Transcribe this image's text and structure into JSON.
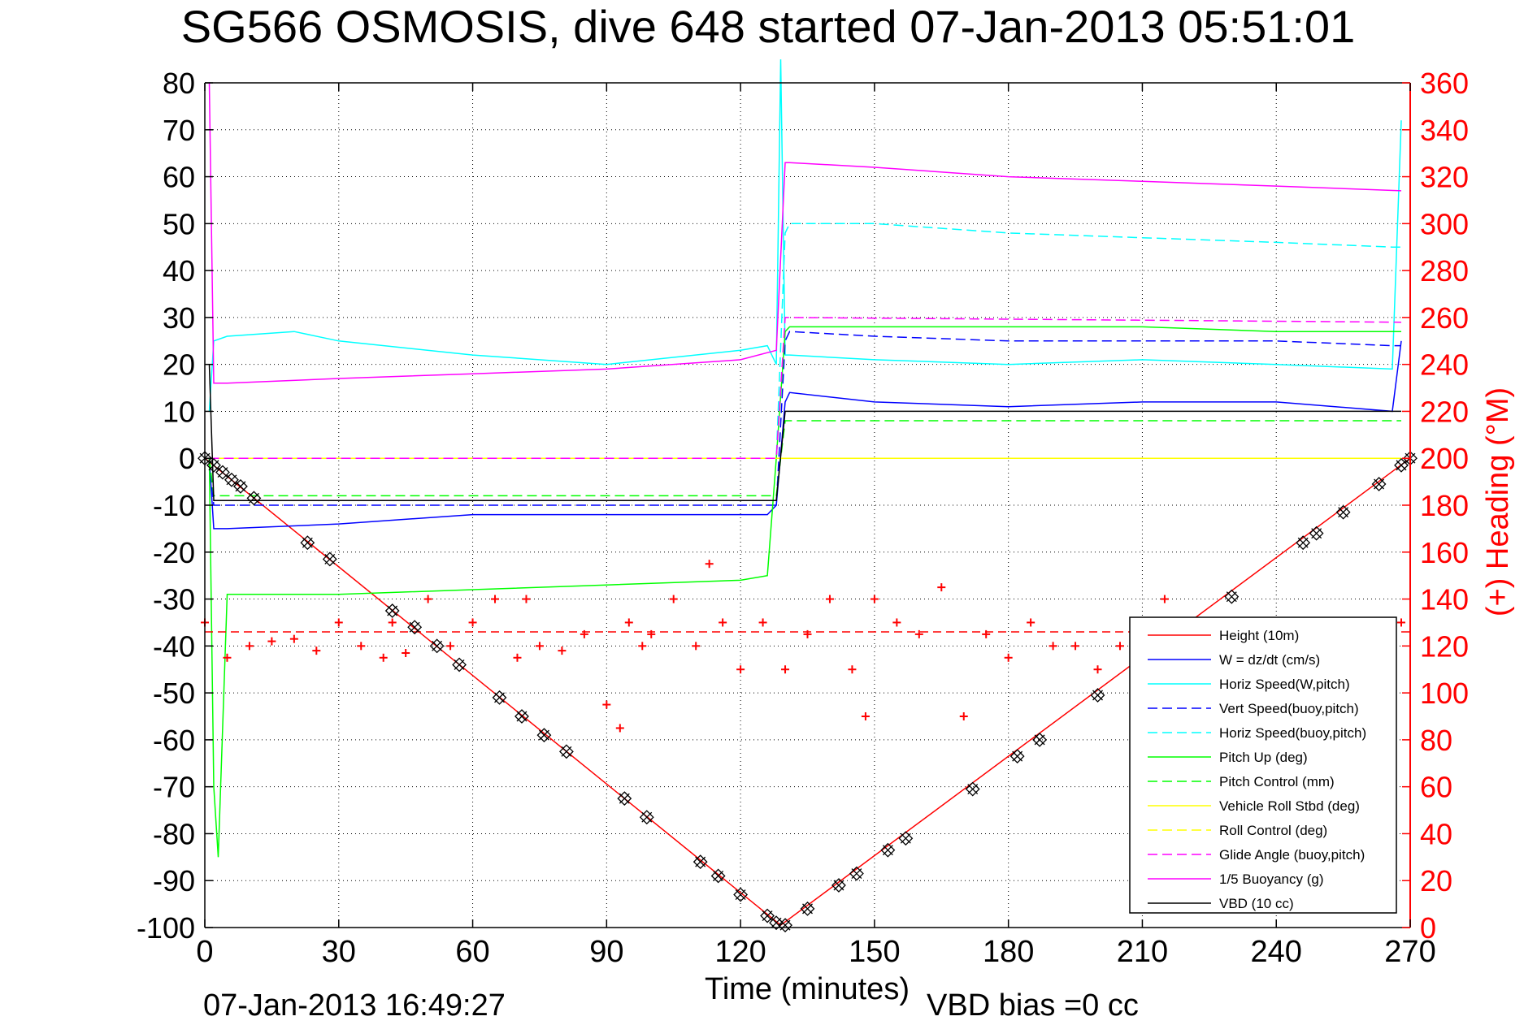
{
  "chart_data": {
    "type": "line",
    "title": "SG566 OSMOSIS, dive 648 started 07-Jan-2013 05:51:01",
    "xlabel": "Time (minutes)",
    "ylabel_right": "(+) Heading (°M)",
    "footer_left": "07-Jan-2013 16:49:27",
    "footer_right": "VBD bias =0 cc",
    "xlim": [
      0,
      270
    ],
    "ylim": [
      -100,
      80
    ],
    "ylim_right": [
      0,
      360
    ],
    "xticks": [
      "0",
      "30",
      "60",
      "90",
      "120",
      "150",
      "180",
      "210",
      "240",
      "270"
    ],
    "yticks": [
      "80",
      "70",
      "60",
      "50",
      "40",
      "30",
      "20",
      "10",
      "0",
      "-10",
      "-20",
      "-30",
      "-40",
      "-50",
      "-60",
      "-70",
      "-80",
      "-90",
      "-100"
    ],
    "yticks_right": [
      "360",
      "340",
      "320",
      "300",
      "280",
      "260",
      "240",
      "220",
      "200",
      "180",
      "160",
      "140",
      "120",
      "100",
      "80",
      "60",
      "40",
      "20",
      "0"
    ],
    "grid": true,
    "legend_position": "bottom-right",
    "series": [
      {
        "name": "Height (10m)",
        "color": "#ff0000",
        "style": "solid",
        "x": [
          0,
          129,
          270
        ],
        "y": [
          0,
          -99.5,
          0
        ]
      },
      {
        "name": "W = dz/dt (cm/s)",
        "color": "#0000ff",
        "style": "solid",
        "x": [
          1,
          2,
          5,
          30,
          60,
          90,
          126,
          128,
          130,
          131,
          150,
          180,
          210,
          240,
          266,
          268
        ],
        "y": [
          0,
          -15,
          -15,
          -14,
          -12,
          -12,
          -12,
          -10,
          12,
          14,
          12,
          11,
          12,
          12,
          10,
          25
        ]
      },
      {
        "name": "Horiz Speed(W,pitch)",
        "color": "#00ffff",
        "style": "solid",
        "x": [
          1,
          2,
          5,
          20,
          30,
          60,
          90,
          120,
          126,
          128,
          129,
          130,
          131,
          150,
          180,
          210,
          240,
          266,
          268
        ],
        "y": [
          10,
          25,
          26,
          27,
          25,
          22,
          20,
          23,
          24,
          20,
          85,
          22,
          22,
          21,
          20,
          21,
          20,
          19,
          72
        ]
      },
      {
        "name": "Vert Speed(buoy,pitch)",
        "color": "#0000ff",
        "style": "dashed",
        "x": [
          1,
          2,
          128,
          130,
          131,
          150,
          180,
          210,
          240,
          266,
          268
        ],
        "y": [
          0,
          -10,
          -10,
          25,
          27,
          26,
          25,
          25,
          25,
          24,
          24
        ]
      },
      {
        "name": "Horiz Speed(buoy,pitch)",
        "color": "#00ffff",
        "style": "dashed",
        "x": [
          1,
          2,
          128,
          130,
          131,
          150,
          180,
          210,
          240,
          266,
          268
        ],
        "y": [
          0,
          0,
          0,
          48,
          50,
          50,
          48,
          47,
          46,
          45,
          45
        ]
      },
      {
        "name": "Pitch Up (deg)",
        "color": "#00ff00",
        "style": "solid",
        "x": [
          1,
          2,
          3,
          5,
          30,
          60,
          90,
          120,
          126,
          128,
          130,
          131,
          150,
          180,
          210,
          240,
          266,
          268
        ],
        "y": [
          0,
          -70,
          -85,
          -29,
          -29,
          -28,
          -27,
          -26,
          -25,
          0,
          27,
          28,
          28,
          28,
          28,
          27,
          27,
          27
        ]
      },
      {
        "name": "Pitch Control (mm)",
        "color": "#00ff00",
        "style": "dashed",
        "x": [
          1,
          2,
          5,
          128,
          130,
          131,
          268
        ],
        "y": [
          0,
          -8,
          -8,
          -8,
          8,
          8,
          8
        ]
      },
      {
        "name": "Vehicle Roll Stbd (deg)",
        "color": "#ffff00",
        "style": "solid",
        "x": [
          1,
          2,
          128,
          130,
          131,
          268
        ],
        "y": [
          0,
          0,
          0,
          0,
          0,
          0
        ]
      },
      {
        "name": "Roll Control (deg)",
        "color": "#ffff00",
        "style": "dashed",
        "x": [
          1,
          128,
          268
        ],
        "y": [
          0,
          0,
          0
        ]
      },
      {
        "name": "Glide Angle (buoy,pitch)",
        "color": "#ff00ff",
        "style": "dashed",
        "x": [
          1,
          128,
          130,
          131,
          268
        ],
        "y": [
          0,
          0,
          30,
          30,
          29
        ]
      },
      {
        "name": "1/5 Buoyancy (g)",
        "color": "#ff00ff",
        "style": "solid",
        "x": [
          1,
          2,
          5,
          30,
          60,
          90,
          120,
          128,
          130,
          131,
          150,
          180,
          210,
          240,
          268
        ],
        "y": [
          80,
          16,
          16,
          17,
          18,
          19,
          21,
          23,
          63,
          63,
          62,
          60,
          59,
          58,
          57
        ]
      },
      {
        "name": "VBD (10 cc)",
        "color": "#000000",
        "style": "solid",
        "x": [
          1,
          2,
          5,
          128,
          130,
          131,
          268
        ],
        "y": [
          20,
          -9,
          -9,
          -9,
          10,
          10,
          10
        ]
      }
    ],
    "heading_series": {
      "color": "#ff0000",
      "marker": "+",
      "axis": "right",
      "reference_value": 126,
      "x": [
        0,
        5,
        10,
        15,
        20,
        25,
        30,
        35,
        40,
        42,
        45,
        50,
        55,
        60,
        65,
        70,
        72,
        75,
        80,
        85,
        90,
        93,
        95,
        98,
        100,
        105,
        110,
        113,
        116,
        120,
        125,
        130,
        135,
        140,
        145,
        148,
        150,
        155,
        160,
        165,
        170,
        175,
        180,
        185,
        190,
        195,
        200,
        205,
        210,
        215,
        220,
        225,
        230,
        240,
        250,
        260,
        268
      ],
      "y": [
        130,
        115,
        120,
        122,
        123,
        118,
        130,
        120,
        115,
        130,
        117,
        140,
        120,
        130,
        140,
        115,
        140,
        120,
        118,
        125,
        95,
        85,
        130,
        120,
        125,
        140,
        120,
        155,
        130,
        110,
        130,
        110,
        125,
        140,
        110,
        90,
        140,
        130,
        125,
        145,
        90,
        125,
        115,
        130,
        120,
        120,
        110,
        120,
        115,
        140,
        120,
        125,
        130,
        125,
        125,
        120,
        130
      ]
    },
    "depth_markers": {
      "marker": "diamond-x",
      "color": "#000000",
      "x": [
        0,
        2,
        4,
        6,
        8,
        11,
        23,
        28,
        42,
        47,
        52,
        57,
        66,
        71,
        76,
        81,
        94,
        99,
        111,
        115,
        120,
        126,
        128,
        130,
        135,
        142,
        146,
        153,
        157,
        172,
        182,
        187,
        200,
        220,
        230,
        246,
        249,
        255,
        263,
        268,
        270
      ],
      "y": [
        0,
        -1.5,
        -3,
        -4.6,
        -6,
        -8.5,
        -18,
        -21.5,
        -32.5,
        -36,
        -40,
        -44,
        -51,
        -55,
        -59,
        -62.5,
        -72.5,
        -76.5,
        -86,
        -89,
        -93,
        -97.5,
        -99,
        -99.5,
        -96,
        -91,
        -88.5,
        -83.5,
        -81,
        -70.5,
        -63.5,
        -60,
        -50.5,
        -36.5,
        -29.5,
        -18,
        -16,
        -11.5,
        -5.5,
        -1.5,
        0
      ]
    }
  }
}
